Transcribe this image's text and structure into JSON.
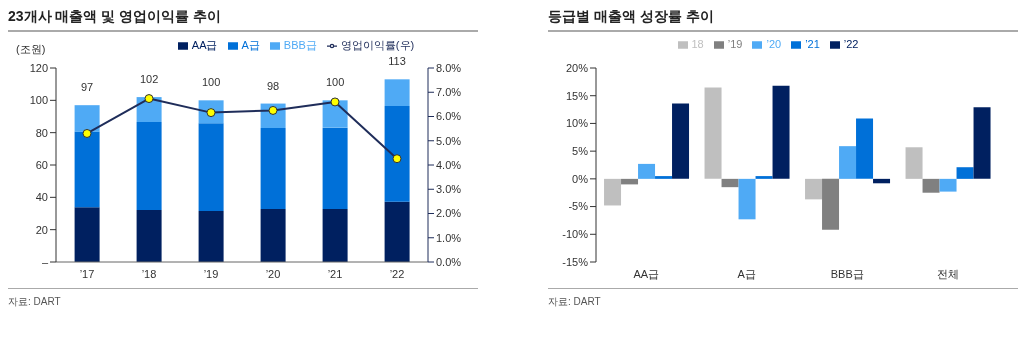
{
  "chart_data": [
    {
      "type": "bar",
      "title": "23개사 매출액 및 영업이익률 추이",
      "ylabel": "(조원)",
      "stacked": true,
      "legend": "top",
      "categories": [
        "’17",
        "’18",
        "’19",
        "’20",
        "’21",
        "’22"
      ],
      "series": [
        {
          "name": "AA급",
          "color": "#002060",
          "values": [
            33.8,
            32.2,
            31.5,
            32.8,
            32.8,
            37.3
          ]
        },
        {
          "name": "A급",
          "color": "#0070d8",
          "values": [
            46.7,
            54.4,
            54.3,
            50.1,
            50.3,
            59.2
          ]
        },
        {
          "name": "BBB급",
          "color": "#4faaf5",
          "values": [
            16.5,
            15.4,
            14.2,
            15.1,
            16.9,
            16.5
          ]
        },
        {
          "name": "영업이익률(우)",
          "type": "line",
          "axis": "y2",
          "color": "#1f2d5a",
          "values": [
            5.3,
            6.74,
            6.16,
            6.25,
            6.6,
            4.26
          ]
        }
      ],
      "totals": [
        "97",
        "102",
        "100",
        "98",
        "100",
        "113"
      ],
      "marker": "circle",
      "ylim": [
        0,
        120
      ],
      "yticks": [
        {
          "value": 0,
          "label": "–"
        },
        20,
        40,
        60,
        80,
        100,
        120
      ],
      "y2lim": [
        0,
        8
      ],
      "y2ticks": [
        {
          "value": 0,
          "label": "0.0%"
        },
        {
          "value": 1,
          "label": "1.0%"
        },
        {
          "value": 2,
          "label": "2.0%"
        },
        {
          "value": 3,
          "label": "3.0%"
        },
        {
          "value": 4,
          "label": "4.0%"
        },
        {
          "value": 5,
          "label": "5.0%"
        },
        {
          "value": 6,
          "label": "6.0%"
        },
        {
          "value": 7,
          "label": "7.0%"
        },
        {
          "value": 8,
          "label": "8.0%"
        }
      ],
      "annotations": [
        "자료: DART"
      ]
    },
    {
      "type": "bar",
      "title": "등급별 매출액 성장률 추이",
      "legend": "top",
      "categories": [
        "AA급",
        "A급",
        "BBB급",
        "전체"
      ],
      "series": [
        {
          "name": "18",
          "color": "#bfbfbf",
          "values": [
            -4.8,
            16.5,
            -3.7,
            5.7
          ]
        },
        {
          "name": "’19",
          "color": "#808080",
          "values": [
            -1.0,
            -1.5,
            -9.2,
            -2.5
          ]
        },
        {
          "name": "’20",
          "color": "#4faaf5",
          "values": [
            2.7,
            -7.3,
            5.9,
            -2.3
          ]
        },
        {
          "name": "’21",
          "color": "#0070d8",
          "values": [
            0.5,
            0.5,
            10.9,
            2.1
          ]
        },
        {
          "name": "’22",
          "color": "#002060",
          "values": [
            13.6,
            16.8,
            -0.8,
            12.9
          ]
        }
      ],
      "ylim": [
        -15,
        20
      ],
      "yticks": [
        {
          "value": -15,
          "label": "-15%"
        },
        {
          "value": -10,
          "label": "-10%"
        },
        {
          "value": -5,
          "label": "-5%"
        },
        {
          "value": 0,
          "label": "0%"
        },
        {
          "value": 5,
          "label": "5%"
        },
        {
          "value": 10,
          "label": "10%"
        },
        {
          "value": 15,
          "label": "15%"
        },
        {
          "value": 20,
          "label": "20%"
        }
      ],
      "annotations": [
        "자료: DART"
      ]
    }
  ]
}
